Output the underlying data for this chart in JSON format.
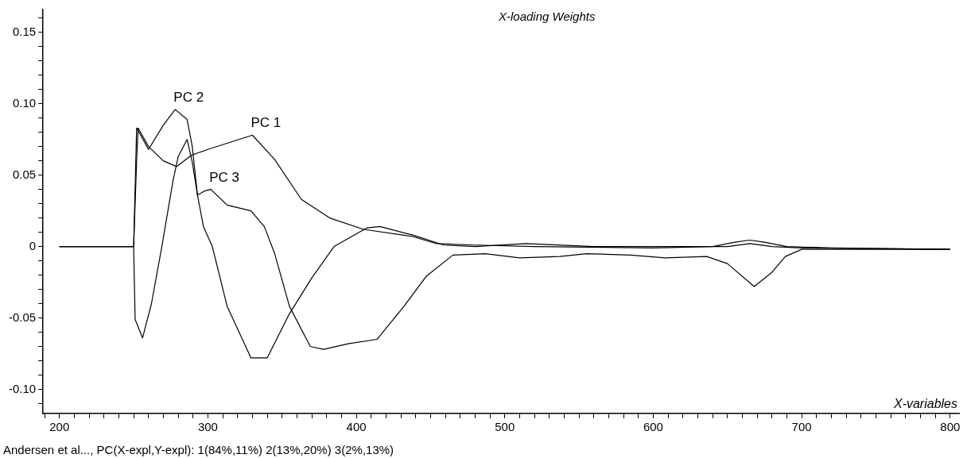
{
  "chart_data": {
    "type": "line",
    "title": "X-loading Weights",
    "xlabel": "X-variables",
    "xlim": [
      189,
      806
    ],
    "ylim": [
      -0.117,
      0.166
    ],
    "xticks": [
      {
        "value": 190,
        "label": null
      },
      200,
      {
        "value": 210,
        "label": null
      },
      {
        "value": 220,
        "label": null
      },
      {
        "value": 230,
        "label": null
      },
      {
        "value": 240,
        "label": null
      },
      {
        "value": 250,
        "label": null
      },
      {
        "value": 260,
        "label": null
      },
      {
        "value": 270,
        "label": null
      },
      {
        "value": 280,
        "label": null
      },
      {
        "value": 290,
        "label": null
      },
      300,
      {
        "value": 310,
        "label": null
      },
      {
        "value": 320,
        "label": null
      },
      {
        "value": 330,
        "label": null
      },
      {
        "value": 340,
        "label": null
      },
      {
        "value": 350,
        "label": null
      },
      {
        "value": 360,
        "label": null
      },
      {
        "value": 370,
        "label": null
      },
      {
        "value": 380,
        "label": null
      },
      {
        "value": 390,
        "label": null
      },
      400,
      {
        "value": 410,
        "label": null
      },
      {
        "value": 420,
        "label": null
      },
      {
        "value": 430,
        "label": null
      },
      {
        "value": 440,
        "label": null
      },
      {
        "value": 450,
        "label": null
      },
      {
        "value": 460,
        "label": null
      },
      {
        "value": 470,
        "label": null
      },
      {
        "value": 480,
        "label": null
      },
      {
        "value": 490,
        "label": null
      },
      500,
      {
        "value": 510,
        "label": null
      },
      {
        "value": 520,
        "label": null
      },
      {
        "value": 530,
        "label": null
      },
      {
        "value": 540,
        "label": null
      },
      {
        "value": 550,
        "label": null
      },
      {
        "value": 560,
        "label": null
      },
      {
        "value": 570,
        "label": null
      },
      {
        "value": 580,
        "label": null
      },
      {
        "value": 590,
        "label": null
      },
      600,
      {
        "value": 610,
        "label": null
      },
      {
        "value": 620,
        "label": null
      },
      {
        "value": 630,
        "label": null
      },
      {
        "value": 640,
        "label": null
      },
      {
        "value": 650,
        "label": null
      },
      {
        "value": 660,
        "label": null
      },
      {
        "value": 670,
        "label": null
      },
      {
        "value": 680,
        "label": null
      },
      {
        "value": 690,
        "label": null
      },
      700,
      {
        "value": 710,
        "label": null
      },
      {
        "value": 720,
        "label": null
      },
      {
        "value": 730,
        "label": null
      },
      {
        "value": 740,
        "label": null
      },
      {
        "value": 750,
        "label": null
      },
      {
        "value": 760,
        "label": null
      },
      {
        "value": 770,
        "label": null
      },
      {
        "value": 780,
        "label": null
      },
      {
        "value": 790,
        "label": null
      },
      800
    ],
    "yticks": [
      {
        "value": -0.11,
        "label": null
      },
      {
        "value": -0.1,
        "label": "-0.10"
      },
      {
        "value": -0.09,
        "label": null
      },
      {
        "value": -0.08,
        "label": null
      },
      {
        "value": -0.07,
        "label": null
      },
      {
        "value": -0.06,
        "label": null
      },
      -0.05,
      {
        "value": -0.04,
        "label": null
      },
      {
        "value": -0.03,
        "label": null
      },
      {
        "value": -0.02,
        "label": null
      },
      {
        "value": -0.01,
        "label": null
      },
      0,
      {
        "value": 0.01,
        "label": null
      },
      {
        "value": 0.02,
        "label": null
      },
      {
        "value": 0.03,
        "label": null
      },
      {
        "value": 0.04,
        "label": null
      },
      0.05,
      {
        "value": 0.06,
        "label": null
      },
      {
        "value": 0.07,
        "label": null
      },
      {
        "value": 0.08,
        "label": null
      },
      {
        "value": 0.09,
        "label": null
      },
      {
        "value": 0.1,
        "label": "0.10"
      },
      {
        "value": 0.11,
        "label": null
      },
      {
        "value": 0.12,
        "label": null
      },
      {
        "value": 0.13,
        "label": null
      },
      {
        "value": 0.14,
        "label": null
      },
      0.15,
      {
        "value": 0.16,
        "label": null
      }
    ],
    "grid": false,
    "legend": false,
    "marker": "none",
    "line_style": "solid",
    "series": [
      {
        "name": "PC 1",
        "color": "#000000",
        "x": [
          200,
          250,
          252,
          253,
          260,
          270,
          279,
          289,
          300,
          315,
          330,
          345,
          363,
          382,
          405,
          438,
          454,
          480,
          520,
          600,
          640,
          655,
          665,
          675,
          690,
          720,
          800
        ],
        "values": [
          0,
          0,
          0.06,
          0.083,
          0.07,
          0.06,
          0.056,
          0.064,
          0.068,
          0.073,
          0.078,
          0.061,
          0.033,
          0.02,
          0.012,
          0.007,
          0.002,
          0.001,
          0,
          -0.001,
          0,
          0.003,
          0.0045,
          0.003,
          0,
          -0.001,
          -0.002
        ]
      },
      {
        "name": "PC 2",
        "color": "#000000",
        "x": [
          200,
          250,
          252,
          260,
          270,
          278,
          286,
          289.5,
          293,
          297,
          303,
          313,
          329,
          340,
          355,
          370,
          385,
          407,
          416,
          438,
          459,
          480,
          514,
          560,
          650,
          665,
          680,
          700,
          800
        ],
        "values": [
          0,
          0,
          0.083,
          0.068,
          0.085,
          0.096,
          0.089,
          0.07,
          0.036,
          0.014,
          0,
          -0.042,
          -0.078,
          -0.078,
          -0.047,
          -0.022,
          0,
          0.013,
          0.014,
          0.008,
          0.001,
          0,
          0.002,
          0,
          0,
          0.002,
          0,
          -0.001,
          -0.002
        ]
      },
      {
        "name": "PC 3",
        "color": "#000000",
        "x": [
          200,
          250,
          251,
          256,
          262,
          269,
          276.5,
          280,
          286,
          289.5,
          293,
          298,
          302,
          313,
          329,
          338,
          345,
          355,
          369,
          378,
          395,
          414,
          432,
          447,
          465,
          487,
          510,
          537,
          555,
          585,
          608,
          636,
          650,
          668,
          680,
          689,
          700,
          800
        ],
        "values": [
          0,
          0,
          -0.051,
          -0.064,
          -0.04,
          0,
          0.046,
          0.063,
          0.075,
          0.059,
          0.036,
          0.039,
          0.04,
          0.029,
          0.025,
          0.014,
          -0.005,
          -0.042,
          -0.07,
          -0.072,
          -0.068,
          -0.065,
          -0.042,
          -0.021,
          -0.006,
          -0.005,
          -0.008,
          -0.007,
          -0.005,
          -0.006,
          -0.008,
          -0.007,
          -0.012,
          -0.028,
          -0.018,
          -0.007,
          -0.002,
          -0.002
        ]
      }
    ],
    "annotations": [
      "Andersen et al..., PC(X-expl,Y-expl): 1(84%,11%) 2(13%,20%) 3(2%,13%)"
    ]
  }
}
